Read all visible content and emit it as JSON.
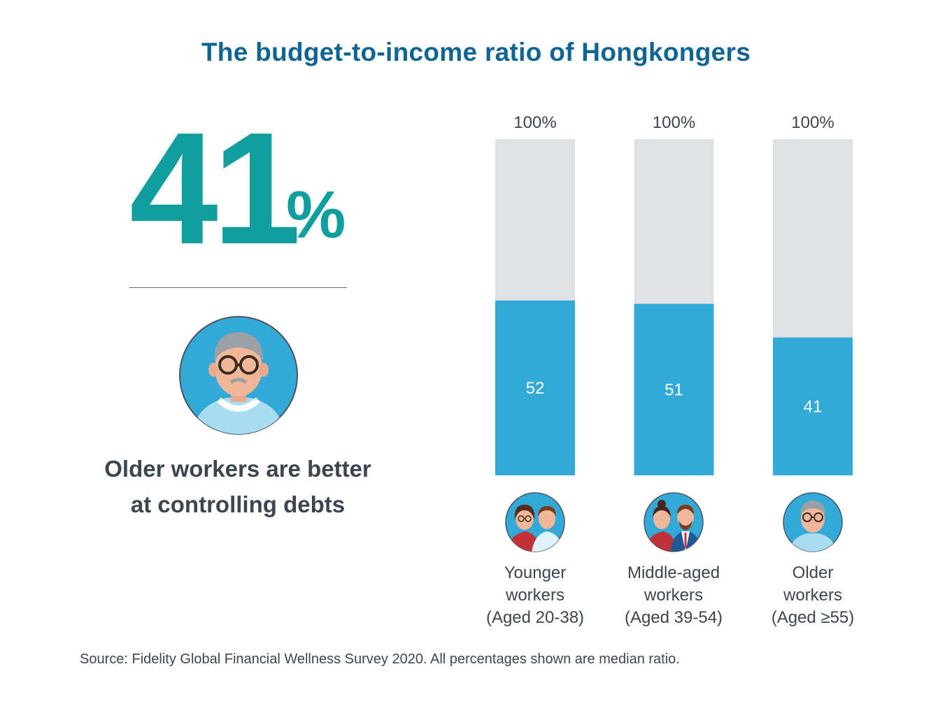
{
  "title": "The budget-to-income ratio of Hongkongers",
  "highlight": {
    "value": "41",
    "unit": "%",
    "caption_line1": "Older workers are better",
    "caption_line2": "at controlling debts",
    "icon": "older-worker-avatar"
  },
  "chart_data": {
    "type": "bar",
    "stacked_against_total": true,
    "categories": [
      "Younger workers (Aged 20-38)",
      "Middle-aged workers (Aged 39-54)",
      "Older workers (Aged ≥55)"
    ],
    "values": [
      52,
      51,
      41
    ],
    "total_values": [
      100,
      100,
      100
    ],
    "total_labels": [
      "100%",
      "100%",
      "100%"
    ],
    "value_labels": [
      "52",
      "51",
      "41"
    ],
    "ylim": [
      0,
      100
    ],
    "colors": {
      "value": "#33a9d9",
      "total": "#e0e1e2"
    },
    "grid": false,
    "legend": "none"
  },
  "groups": [
    {
      "line1": "Younger",
      "line2": "workers",
      "line3": "(Aged 20-38)",
      "icon": "younger-workers-avatar"
    },
    {
      "line1": "Middle-aged",
      "line2": "workers",
      "line3": "(Aged 39-54)",
      "icon": "middle-aged-workers-avatar"
    },
    {
      "line1": "Older",
      "line2": "workers",
      "line3": "(Aged ≥55)",
      "icon": "older-workers-avatar"
    }
  ],
  "source": "Source: Fidelity Global Financial Wellness Survey 2020. All percentages shown are median ratio.",
  "colors": {
    "title": "#0e6494",
    "highlight": "#109e9e",
    "text": "#3d4650"
  }
}
